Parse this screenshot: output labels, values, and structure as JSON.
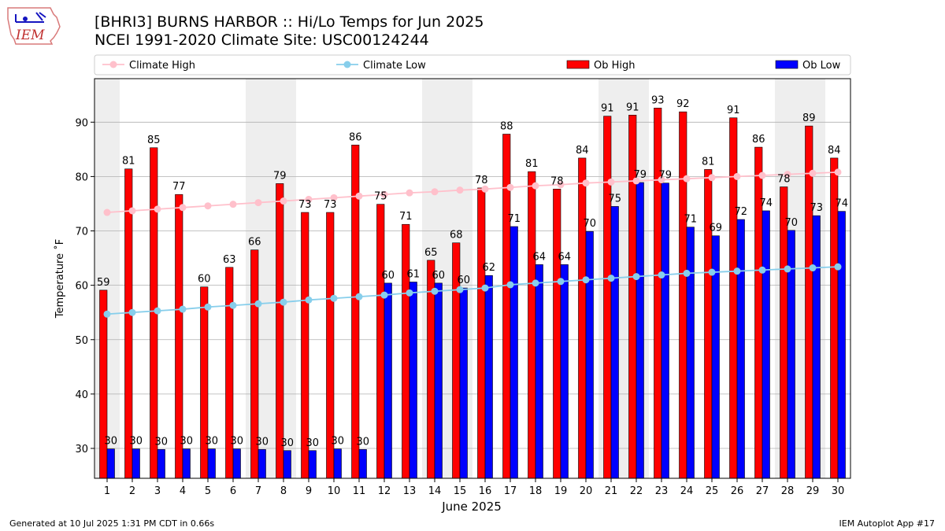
{
  "title": "[BHRI3] BURNS HARBOR :: Hi/Lo Temps for Jun 2025",
  "subtitle": "NCEI 1991-2020 Climate Site: USC00124244",
  "logo_text": "IEM",
  "footer_left": "Generated at 10 Jul 2025 1:31 PM CDT in 0.66s",
  "footer_right": "IEM Autoplot App #17",
  "colors": {
    "ob_high": "#ff0000",
    "ob_low": "#0000ff",
    "climate_high": "#ffc0cb",
    "climate_low": "#87ceeb",
    "weekend_band": "#eeeeee",
    "grid": "#b0b0b0"
  },
  "chart_data": {
    "type": "bar",
    "xlabel": "June 2025",
    "ylabel": "Temperature ˚F",
    "ylim": [
      24.5,
      98
    ],
    "yticks": [
      30,
      40,
      50,
      60,
      70,
      80,
      90
    ],
    "grid": "horizontal",
    "legend_position": "top",
    "categories": [
      "1",
      "2",
      "3",
      "4",
      "5",
      "6",
      "7",
      "8",
      "9",
      "10",
      "11",
      "12",
      "13",
      "14",
      "15",
      "16",
      "17",
      "18",
      "19",
      "20",
      "21",
      "22",
      "23",
      "24",
      "25",
      "26",
      "27",
      "28",
      "29",
      "30"
    ],
    "shaded_days": [
      1,
      7,
      8,
      14,
      15,
      21,
      22,
      28,
      29
    ],
    "series": [
      {
        "name": "Ob High",
        "kind": "bar",
        "values": [
          59,
          81,
          85,
          77,
          60,
          63,
          66,
          79,
          73,
          73,
          86,
          75,
          71,
          65,
          68,
          78,
          88,
          81,
          78,
          84,
          91,
          91,
          93,
          92,
          81,
          91,
          86,
          78,
          89,
          84
        ],
        "plotted": [
          59.1,
          81.4,
          85.3,
          76.7,
          59.7,
          63.3,
          66.5,
          78.7,
          73.4,
          73.4,
          85.8,
          74.9,
          71.2,
          64.6,
          67.8,
          77.9,
          87.8,
          80.9,
          77.7,
          83.4,
          91.1,
          91.3,
          92.6,
          91.9,
          81.3,
          90.8,
          85.4,
          78.1,
          89.3,
          83.4
        ]
      },
      {
        "name": "Ob Low",
        "kind": "bar",
        "values": [
          30,
          30,
          30,
          30,
          30,
          30,
          30,
          30,
          30,
          30,
          30,
          60,
          61,
          60,
          60,
          62,
          71,
          64,
          64,
          70,
          75,
          79,
          79,
          71,
          69,
          72,
          74,
          70,
          73,
          74
        ],
        "plotted": [
          29.9,
          29.9,
          29.8,
          29.9,
          29.9,
          29.9,
          29.8,
          29.6,
          29.6,
          29.9,
          29.8,
          60.4,
          60.6,
          60.4,
          59.5,
          61.8,
          70.8,
          63.8,
          63.8,
          69.9,
          74.5,
          78.9,
          78.8,
          70.7,
          69.1,
          72.1,
          73.7,
          70.1,
          72.8,
          73.6
        ]
      },
      {
        "name": "Climate High",
        "kind": "line",
        "values": [
          73.4,
          73.7,
          74.0,
          74.3,
          74.6,
          74.9,
          75.2,
          75.5,
          75.8,
          76.1,
          76.4,
          76.7,
          77.0,
          77.2,
          77.5,
          77.7,
          78.0,
          78.3,
          78.5,
          78.8,
          79.0,
          79.2,
          79.4,
          79.6,
          79.8,
          80.0,
          80.2,
          80.4,
          80.6,
          80.8
        ]
      },
      {
        "name": "Climate Low",
        "kind": "line",
        "values": [
          54.7,
          55.0,
          55.3,
          55.6,
          56.0,
          56.3,
          56.6,
          56.9,
          57.3,
          57.6,
          57.9,
          58.2,
          58.6,
          58.9,
          59.2,
          59.5,
          60.1,
          60.4,
          60.7,
          61.0,
          61.3,
          61.6,
          61.9,
          62.2,
          62.4,
          62.6,
          62.8,
          63.0,
          63.2,
          63.4
        ]
      }
    ]
  }
}
